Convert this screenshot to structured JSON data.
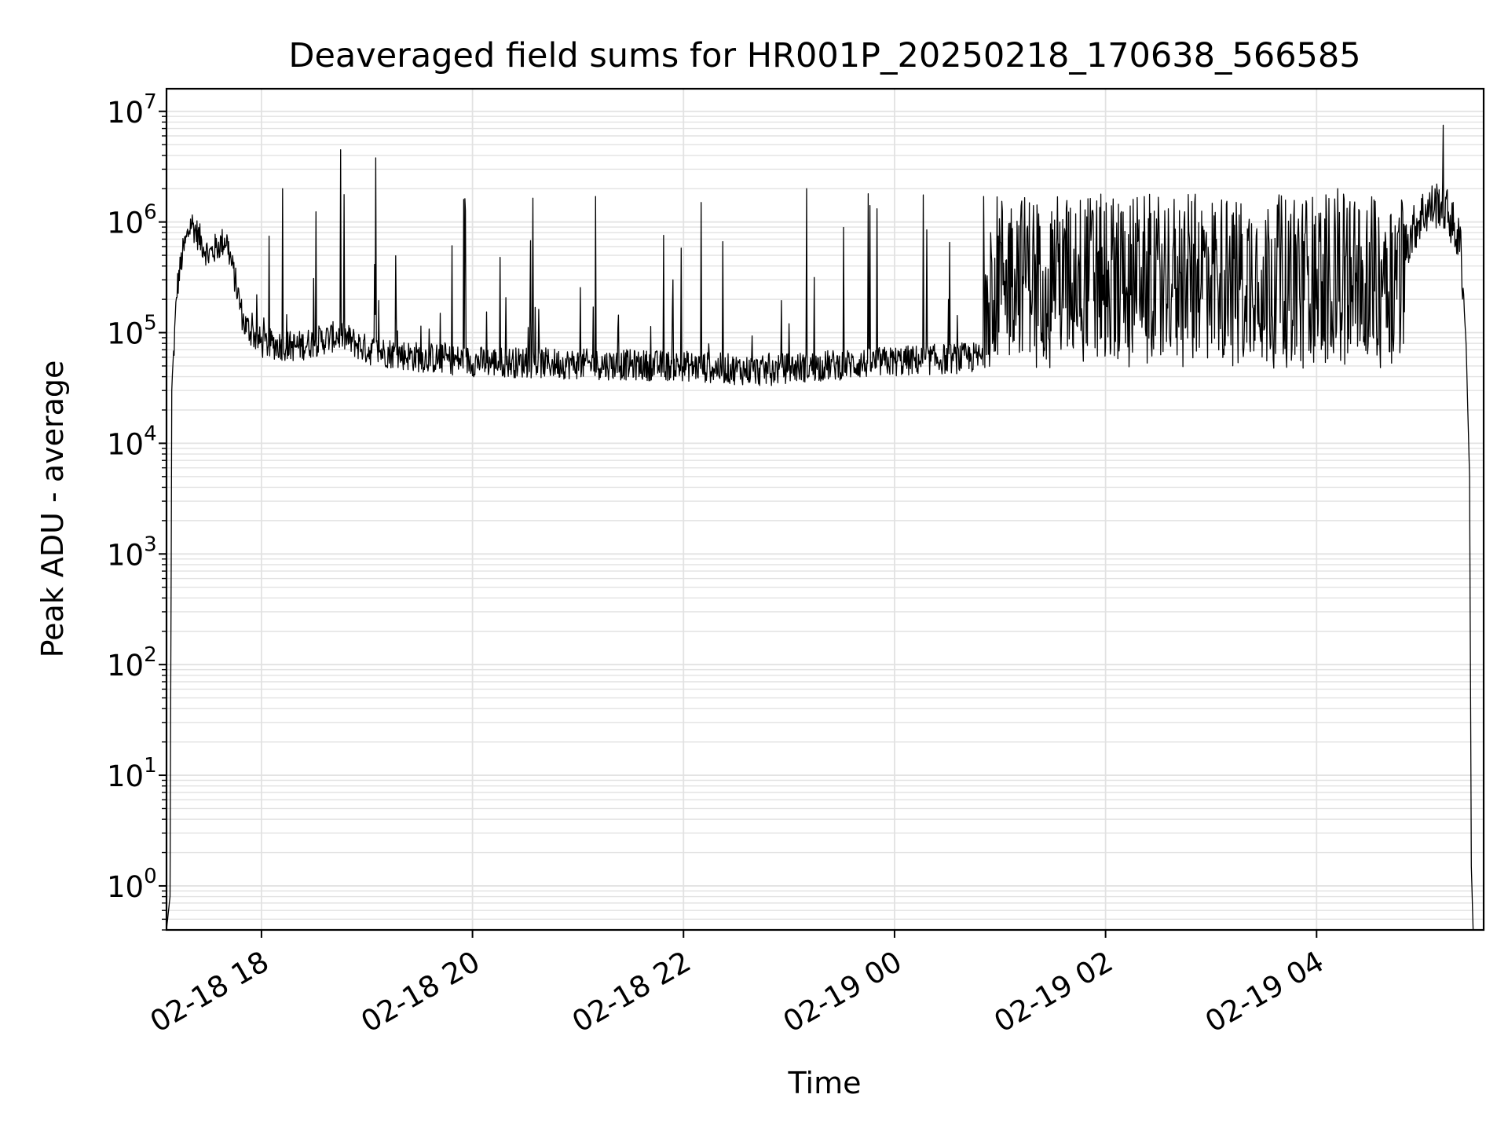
{
  "chart_data": {
    "type": "line",
    "title": "Deaveraged field sums for HR001P_20250218_170638_566585",
    "xlabel": "Time",
    "ylabel": "Peak ADU - average",
    "y_scale": "log",
    "ylim": [
      0.4,
      16000000
    ],
    "xlim": [
      "2025-02-18 17:06",
      "2025-02-19 05:35"
    ],
    "grid": true,
    "line_color": "#000000",
    "grid_color": "#e2e2e2",
    "x_ticks": [
      {
        "t": "2025-02-18 18:00",
        "label": "02-18 18"
      },
      {
        "t": "2025-02-18 20:00",
        "label": "02-18 20"
      },
      {
        "t": "2025-02-18 22:00",
        "label": "02-18 22"
      },
      {
        "t": "2025-02-19 00:00",
        "label": "02-19 00"
      },
      {
        "t": "2025-02-19 02:00",
        "label": "02-19 02"
      },
      {
        "t": "2025-02-19 04:00",
        "label": "02-19 04"
      }
    ],
    "y_ticks": [
      {
        "value": 1,
        "base": "10",
        "exp": "0"
      },
      {
        "value": 10,
        "base": "10",
        "exp": "1"
      },
      {
        "value": 100,
        "base": "10",
        "exp": "2"
      },
      {
        "value": 1000,
        "base": "10",
        "exp": "3"
      },
      {
        "value": 10000,
        "base": "10",
        "exp": "4"
      },
      {
        "value": 100000,
        "base": "10",
        "exp": "5"
      },
      {
        "value": 1000000,
        "base": "10",
        "exp": "6"
      },
      {
        "value": 10000000,
        "base": "10",
        "exp": "7"
      }
    ],
    "series": [
      {
        "baseline_points": [
          [
            "2025-02-18 17:06",
            0.4
          ],
          [
            "2025-02-18 17:08",
            0.8
          ],
          [
            "2025-02-18 17:09",
            30000
          ],
          [
            "2025-02-18 17:12",
            250000
          ],
          [
            "2025-02-18 17:15",
            500000
          ],
          [
            "2025-02-18 17:20",
            1000000
          ],
          [
            "2025-02-18 17:25",
            700000
          ],
          [
            "2025-02-18 17:30",
            500000
          ],
          [
            "2025-02-18 17:35",
            600000
          ],
          [
            "2025-02-18 17:40",
            700000
          ],
          [
            "2025-02-18 17:45",
            300000
          ],
          [
            "2025-02-18 17:50",
            120000
          ],
          [
            "2025-02-18 18:00",
            80000
          ],
          [
            "2025-02-18 18:20",
            75000
          ],
          [
            "2025-02-18 18:45",
            95000
          ],
          [
            "2025-02-18 19:00",
            70000
          ],
          [
            "2025-02-18 19:30",
            60000
          ],
          [
            "2025-02-18 20:00",
            55000
          ],
          [
            "2025-02-18 21:00",
            52000
          ],
          [
            "2025-02-18 22:00",
            50000
          ],
          [
            "2025-02-18 22:45",
            45000
          ],
          [
            "2025-02-18 23:00",
            48000
          ],
          [
            "2025-02-19 00:00",
            55000
          ],
          [
            "2025-02-19 00:50",
            60000
          ]
        ],
        "dense_band": {
          "from": "2025-02-19 00:50",
          "to": "2025-02-19 04:50",
          "low": 60000,
          "high": 1800000
        },
        "end_segment": [
          [
            "2025-02-19 04:50",
            600000
          ],
          [
            "2025-02-19 05:00",
            1200000
          ],
          [
            "2025-02-19 05:10",
            1500000
          ],
          [
            "2025-02-19 05:15",
            1200000
          ],
          [
            "2025-02-19 05:22",
            600000
          ],
          [
            "2025-02-19 05:25",
            80000
          ],
          [
            "2025-02-19 05:27",
            5000
          ],
          [
            "2025-02-19 05:28",
            1.5
          ],
          [
            "2025-02-19 05:29",
            0.4
          ]
        ],
        "spikes": [
          [
            "2025-02-18 18:12",
            2000000
          ],
          [
            "2025-02-18 18:45",
            4500000
          ],
          [
            "2025-02-18 19:05",
            3800000
          ],
          [
            "2025-02-18 19:55",
            1600000
          ],
          [
            "2025-02-18 21:10",
            1700000
          ],
          [
            "2025-02-18 22:10",
            1500000
          ],
          [
            "2025-02-18 23:10",
            2000000
          ],
          [
            "2025-02-18 23:45",
            1800000
          ],
          [
            "2025-02-19 04:12",
            2000000
          ],
          [
            "2025-02-19 05:12",
            7500000
          ]
        ]
      }
    ]
  }
}
